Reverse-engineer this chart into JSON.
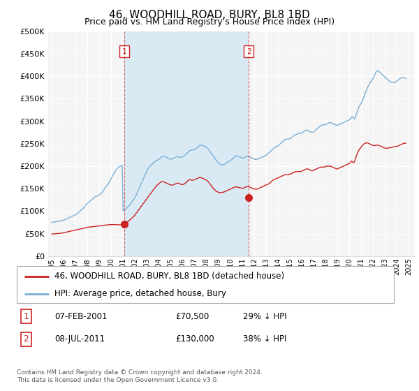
{
  "title": "46, WOODHILL ROAD, BURY, BL8 1BD",
  "subtitle": "Price paid vs. HM Land Registry's House Price Index (HPI)",
  "legend_line1": "46, WOODHILL ROAD, BURY, BL8 1BD (detached house)",
  "legend_line2": "HPI: Average price, detached house, Bury",
  "table_row1": [
    "1",
    "07-FEB-2001",
    "£70,500",
    "29% ↓ HPI"
  ],
  "table_row2": [
    "2",
    "08-JUL-2011",
    "£130,000",
    "38% ↓ HPI"
  ],
  "footnote": "Contains HM Land Registry data © Crown copyright and database right 2024.\nThis data is licensed under the Open Government Licence v3.0.",
  "hpi_color": "#7bafd4",
  "price_color": "#cc2222",
  "vline_color": "#cc2222",
  "shade_color": "#daeaf5",
  "marker1_year": 2001.1,
  "marker1_value": 70500,
  "marker2_year": 2011.55,
  "marker2_value": 130000,
  "ylim": [
    0,
    500000
  ],
  "yticks": [
    0,
    50000,
    100000,
    150000,
    200000,
    250000,
    300000,
    350000,
    400000,
    450000,
    500000
  ],
  "xmin": 1994.7,
  "xmax": 2025.5,
  "background_color": "#f5f5f5",
  "hpi_x": [
    1995.0,
    1995.08,
    1995.17,
    1995.25,
    1995.33,
    1995.42,
    1995.5,
    1995.58,
    1995.67,
    1995.75,
    1995.83,
    1995.92,
    1996.0,
    1996.08,
    1996.17,
    1996.25,
    1996.33,
    1996.42,
    1996.5,
    1996.58,
    1996.67,
    1996.75,
    1996.83,
    1996.92,
    1997.0,
    1997.08,
    1997.17,
    1997.25,
    1997.33,
    1997.42,
    1997.5,
    1997.58,
    1997.67,
    1997.75,
    1997.83,
    1997.92,
    1998.0,
    1998.08,
    1998.17,
    1998.25,
    1998.33,
    1998.42,
    1998.5,
    1998.58,
    1998.67,
    1998.75,
    1998.83,
    1998.92,
    1999.0,
    1999.08,
    1999.17,
    1999.25,
    1999.33,
    1999.42,
    1999.5,
    1999.58,
    1999.67,
    1999.75,
    1999.83,
    1999.92,
    2000.0,
    2000.08,
    2000.17,
    2000.25,
    2000.33,
    2000.42,
    2000.5,
    2000.58,
    2000.67,
    2000.75,
    2000.83,
    2000.92,
    2001.0,
    2001.08,
    2001.17,
    2001.25,
    2001.33,
    2001.42,
    2001.5,
    2001.58,
    2001.67,
    2001.75,
    2001.83,
    2001.92,
    2002.0,
    2002.08,
    2002.17,
    2002.25,
    2002.33,
    2002.42,
    2002.5,
    2002.58,
    2002.67,
    2002.75,
    2002.83,
    2002.92,
    2003.0,
    2003.08,
    2003.17,
    2003.25,
    2003.33,
    2003.42,
    2003.5,
    2003.58,
    2003.67,
    2003.75,
    2003.83,
    2003.92,
    2004.0,
    2004.08,
    2004.17,
    2004.25,
    2004.33,
    2004.42,
    2004.5,
    2004.58,
    2004.67,
    2004.75,
    2004.83,
    2004.92,
    2005.0,
    2005.08,
    2005.17,
    2005.25,
    2005.33,
    2005.42,
    2005.5,
    2005.58,
    2005.67,
    2005.75,
    2005.83,
    2005.92,
    2006.0,
    2006.08,
    2006.17,
    2006.25,
    2006.33,
    2006.42,
    2006.5,
    2006.58,
    2006.67,
    2006.75,
    2006.83,
    2006.92,
    2007.0,
    2007.08,
    2007.17,
    2007.25,
    2007.33,
    2007.42,
    2007.5,
    2007.58,
    2007.67,
    2007.75,
    2007.83,
    2007.92,
    2008.0,
    2008.08,
    2008.17,
    2008.25,
    2008.33,
    2008.42,
    2008.5,
    2008.58,
    2008.67,
    2008.75,
    2008.83,
    2008.92,
    2009.0,
    2009.08,
    2009.17,
    2009.25,
    2009.33,
    2009.42,
    2009.5,
    2009.58,
    2009.67,
    2009.75,
    2009.83,
    2009.92,
    2010.0,
    2010.08,
    2010.17,
    2010.25,
    2010.33,
    2010.42,
    2010.5,
    2010.58,
    2010.67,
    2010.75,
    2010.83,
    2010.92,
    2011.0,
    2011.08,
    2011.17,
    2011.25,
    2011.33,
    2011.42,
    2011.5,
    2011.58,
    2011.67,
    2011.75,
    2011.83,
    2011.92,
    2012.0,
    2012.08,
    2012.17,
    2012.25,
    2012.33,
    2012.42,
    2012.5,
    2012.58,
    2012.67,
    2012.75,
    2012.83,
    2012.92,
    2013.0,
    2013.08,
    2013.17,
    2013.25,
    2013.33,
    2013.42,
    2013.5,
    2013.58,
    2013.67,
    2013.75,
    2013.83,
    2013.92,
    2014.0,
    2014.08,
    2014.17,
    2014.25,
    2014.33,
    2014.42,
    2014.5,
    2014.58,
    2014.67,
    2014.75,
    2014.83,
    2014.92,
    2015.0,
    2015.08,
    2015.17,
    2015.25,
    2015.33,
    2015.42,
    2015.5,
    2015.58,
    2015.67,
    2015.75,
    2015.83,
    2015.92,
    2016.0,
    2016.08,
    2016.17,
    2016.25,
    2016.33,
    2016.42,
    2016.5,
    2016.58,
    2016.67,
    2016.75,
    2016.83,
    2016.92,
    2017.0,
    2017.08,
    2017.17,
    2017.25,
    2017.33,
    2017.42,
    2017.5,
    2017.58,
    2017.67,
    2017.75,
    2017.83,
    2017.92,
    2018.0,
    2018.08,
    2018.17,
    2018.25,
    2018.33,
    2018.42,
    2018.5,
    2018.58,
    2018.67,
    2018.75,
    2018.83,
    2018.92,
    2019.0,
    2019.08,
    2019.17,
    2019.25,
    2019.33,
    2019.42,
    2019.5,
    2019.58,
    2019.67,
    2019.75,
    2019.83,
    2019.92,
    2020.0,
    2020.08,
    2020.17,
    2020.25,
    2020.33,
    2020.42,
    2020.5,
    2020.58,
    2020.67,
    2020.75,
    2020.83,
    2020.92,
    2021.0,
    2021.08,
    2021.17,
    2021.25,
    2021.33,
    2021.42,
    2021.5,
    2021.58,
    2021.67,
    2021.75,
    2021.83,
    2021.92,
    2022.0,
    2022.08,
    2022.17,
    2022.25,
    2022.33,
    2022.42,
    2022.5,
    2022.58,
    2022.67,
    2022.75,
    2022.83,
    2022.92,
    2023.0,
    2023.08,
    2023.17,
    2023.25,
    2023.33,
    2023.42,
    2023.5,
    2023.58,
    2023.67,
    2023.75,
    2023.83,
    2023.92,
    2024.0,
    2024.08,
    2024.17,
    2024.25,
    2024.33,
    2024.42,
    2024.5,
    2024.58,
    2024.67,
    2024.75
  ],
  "hpi_y": [
    75000,
    75500,
    76000,
    75800,
    76200,
    76500,
    77000,
    77500,
    78000,
    78500,
    79000,
    79500,
    80000,
    81000,
    82000,
    83000,
    84000,
    85000,
    86000,
    87000,
    88000,
    89000,
    90000,
    91000,
    92000,
    93500,
    95000,
    97000,
    99000,
    101000,
    103000,
    105000,
    107000,
    110000,
    113000,
    115000,
    117000,
    119000,
    121000,
    123000,
    125000,
    127000,
    129000,
    131000,
    132000,
    133000,
    134000,
    135000,
    136000,
    138000,
    140000,
    143000,
    146000,
    149000,
    152000,
    155000,
    158000,
    161000,
    165000,
    169000,
    173000,
    177000,
    181000,
    185000,
    189000,
    192000,
    195000,
    197000,
    199000,
    200000,
    201000,
    202000,
    100000,
    102000,
    104000,
    106000,
    108000,
    110000,
    112000,
    115000,
    118000,
    121000,
    124000,
    127000,
    130000,
    135000,
    140000,
    145000,
    150000,
    155000,
    160000,
    165000,
    170000,
    175000,
    180000,
    185000,
    190000,
    194000,
    197000,
    200000,
    202000,
    204000,
    206000,
    208000,
    210000,
    212000,
    213000,
    214000,
    215000,
    217000,
    219000,
    221000,
    222000,
    222000,
    221000,
    220000,
    219000,
    218000,
    217000,
    216000,
    215000,
    216000,
    217000,
    218000,
    219000,
    220000,
    221000,
    221000,
    220000,
    220000,
    220000,
    220000,
    221000,
    222000,
    224000,
    226000,
    228000,
    230000,
    232000,
    234000,
    235000,
    236000,
    236000,
    236000,
    237000,
    238000,
    240000,
    242000,
    244000,
    246000,
    247000,
    247000,
    246000,
    245000,
    244000,
    243000,
    242000,
    240000,
    237000,
    234000,
    231000,
    228000,
    225000,
    222000,
    219000,
    216000,
    213000,
    210000,
    207000,
    205000,
    204000,
    203000,
    203000,
    203000,
    204000,
    205000,
    207000,
    209000,
    210000,
    211000,
    212000,
    214000,
    216000,
    218000,
    220000,
    222000,
    223000,
    223000,
    222000,
    221000,
    220000,
    219000,
    218000,
    218000,
    219000,
    220000,
    221000,
    222000,
    222000,
    221000,
    220000,
    219000,
    218000,
    217000,
    216000,
    215000,
    215000,
    215000,
    216000,
    217000,
    218000,
    219000,
    220000,
    221000,
    222000,
    223000,
    224000,
    226000,
    228000,
    230000,
    232000,
    234000,
    236000,
    238000,
    240000,
    242000,
    243000,
    244000,
    245000,
    247000,
    249000,
    251000,
    253000,
    255000,
    257000,
    259000,
    260000,
    260000,
    260000,
    260000,
    261000,
    262000,
    264000,
    266000,
    268000,
    269000,
    270000,
    271000,
    272000,
    273000,
    273000,
    273000,
    274000,
    275000,
    277000,
    279000,
    280000,
    280000,
    279000,
    278000,
    277000,
    276000,
    275000,
    275000,
    276000,
    278000,
    280000,
    282000,
    284000,
    286000,
    288000,
    290000,
    291000,
    292000,
    292000,
    292000,
    293000,
    294000,
    295000,
    296000,
    297000,
    297000,
    296000,
    295000,
    294000,
    293000,
    292000,
    291000,
    291000,
    292000,
    293000,
    294000,
    295000,
    296000,
    297000,
    298000,
    299000,
    300000,
    301000,
    302000,
    303000,
    305000,
    308000,
    310000,
    310000,
    305000,
    308000,
    315000,
    322000,
    328000,
    333000,
    337000,
    340000,
    345000,
    350000,
    356000,
    362000,
    368000,
    373000,
    378000,
    382000,
    386000,
    389000,
    392000,
    395000,
    400000,
    405000,
    410000,
    412000,
    412000,
    410000,
    408000,
    406000,
    404000,
    402000,
    400000,
    398000,
    396000,
    394000,
    392000,
    390000,
    388000,
    387000,
    386000,
    386000,
    386000,
    387000,
    388000,
    389000,
    391000,
    393000,
    395000,
    396000,
    397000,
    397000,
    397000,
    396000,
    395000
  ],
  "price_x": [
    1995.0,
    1995.08,
    1995.17,
    1995.25,
    1995.33,
    1995.42,
    1995.5,
    1995.58,
    1995.67,
    1995.75,
    1995.83,
    1995.92,
    1996.0,
    1996.08,
    1996.17,
    1996.25,
    1996.33,
    1996.42,
    1996.5,
    1996.58,
    1996.67,
    1996.75,
    1996.83,
    1996.92,
    1997.0,
    1997.08,
    1997.17,
    1997.25,
    1997.33,
    1997.42,
    1997.5,
    1997.58,
    1997.67,
    1997.75,
    1997.83,
    1997.92,
    1998.0,
    1998.08,
    1998.17,
    1998.25,
    1998.33,
    1998.42,
    1998.5,
    1998.58,
    1998.67,
    1998.75,
    1998.83,
    1998.92,
    1999.0,
    1999.08,
    1999.17,
    1999.25,
    1999.33,
    1999.42,
    1999.5,
    1999.58,
    1999.67,
    1999.75,
    1999.83,
    1999.92,
    2000.0,
    2000.08,
    2000.17,
    2000.25,
    2000.33,
    2000.42,
    2000.5,
    2000.58,
    2000.67,
    2000.75,
    2000.83,
    2000.92,
    2001.0,
    2001.08,
    2001.17,
    2001.25,
    2001.33,
    2001.42,
    2001.5,
    2001.58,
    2001.67,
    2001.75,
    2001.83,
    2001.92,
    2002.0,
    2002.08,
    2002.17,
    2002.25,
    2002.33,
    2002.42,
    2002.5,
    2002.58,
    2002.67,
    2002.75,
    2002.83,
    2002.92,
    2003.0,
    2003.08,
    2003.17,
    2003.25,
    2003.33,
    2003.42,
    2003.5,
    2003.58,
    2003.67,
    2003.75,
    2003.83,
    2003.92,
    2004.0,
    2004.08,
    2004.17,
    2004.25,
    2004.33,
    2004.42,
    2004.5,
    2004.58,
    2004.67,
    2004.75,
    2004.83,
    2004.92,
    2005.0,
    2005.08,
    2005.17,
    2005.25,
    2005.33,
    2005.42,
    2005.5,
    2005.58,
    2005.67,
    2005.75,
    2005.83,
    2005.92,
    2006.0,
    2006.08,
    2006.17,
    2006.25,
    2006.33,
    2006.42,
    2006.5,
    2006.58,
    2006.67,
    2006.75,
    2006.83,
    2006.92,
    2007.0,
    2007.08,
    2007.17,
    2007.25,
    2007.33,
    2007.42,
    2007.5,
    2007.58,
    2007.67,
    2007.75,
    2007.83,
    2007.92,
    2008.0,
    2008.08,
    2008.17,
    2008.25,
    2008.33,
    2008.42,
    2008.5,
    2008.58,
    2008.67,
    2008.75,
    2008.83,
    2008.92,
    2009.0,
    2009.08,
    2009.17,
    2009.25,
    2009.33,
    2009.42,
    2009.5,
    2009.58,
    2009.67,
    2009.75,
    2009.83,
    2009.92,
    2010.0,
    2010.08,
    2010.17,
    2010.25,
    2010.33,
    2010.42,
    2010.5,
    2010.58,
    2010.67,
    2010.75,
    2010.83,
    2010.92,
    2011.0,
    2011.08,
    2011.17,
    2011.25,
    2011.33,
    2011.42,
    2011.5,
    2011.58,
    2011.67,
    2011.75,
    2011.83,
    2011.92,
    2012.0,
    2012.08,
    2012.17,
    2012.25,
    2012.33,
    2012.42,
    2012.5,
    2012.58,
    2012.67,
    2012.75,
    2012.83,
    2012.92,
    2013.0,
    2013.08,
    2013.17,
    2013.25,
    2013.33,
    2013.42,
    2013.5,
    2013.58,
    2013.67,
    2013.75,
    2013.83,
    2013.92,
    2014.0,
    2014.08,
    2014.17,
    2014.25,
    2014.33,
    2014.42,
    2014.5,
    2014.58,
    2014.67,
    2014.75,
    2014.83,
    2014.92,
    2015.0,
    2015.08,
    2015.17,
    2015.25,
    2015.33,
    2015.42,
    2015.5,
    2015.58,
    2015.67,
    2015.75,
    2015.83,
    2015.92,
    2016.0,
    2016.08,
    2016.17,
    2016.25,
    2016.33,
    2016.42,
    2016.5,
    2016.58,
    2016.67,
    2016.75,
    2016.83,
    2016.92,
    2017.0,
    2017.08,
    2017.17,
    2017.25,
    2017.33,
    2017.42,
    2017.5,
    2017.58,
    2017.67,
    2017.75,
    2017.83,
    2017.92,
    2018.0,
    2018.08,
    2018.17,
    2018.25,
    2018.33,
    2018.42,
    2018.5,
    2018.58,
    2018.67,
    2018.75,
    2018.83,
    2018.92,
    2019.0,
    2019.08,
    2019.17,
    2019.25,
    2019.33,
    2019.42,
    2019.5,
    2019.58,
    2019.67,
    2019.75,
    2019.83,
    2019.92,
    2020.0,
    2020.08,
    2020.17,
    2020.25,
    2020.33,
    2020.42,
    2020.5,
    2020.58,
    2020.67,
    2020.75,
    2020.83,
    2020.92,
    2021.0,
    2021.08,
    2021.17,
    2021.25,
    2021.33,
    2021.42,
    2021.5,
    2021.58,
    2021.67,
    2021.75,
    2021.83,
    2021.92,
    2022.0,
    2022.08,
    2022.17,
    2022.25,
    2022.33,
    2022.42,
    2022.5,
    2022.58,
    2022.67,
    2022.75,
    2022.83,
    2022.92,
    2023.0,
    2023.08,
    2023.17,
    2023.25,
    2023.33,
    2023.42,
    2023.5,
    2023.58,
    2023.67,
    2023.75,
    2023.83,
    2023.92,
    2024.0,
    2024.08,
    2024.17,
    2024.25,
    2024.33,
    2024.42,
    2024.5,
    2024.58,
    2024.67,
    2024.75
  ],
  "price_y": [
    49000,
    49200,
    49400,
    49600,
    49800,
    50000,
    50200,
    50400,
    50600,
    50800,
    51000,
    51500,
    52000,
    52500,
    53000,
    53500,
    54000,
    54500,
    55000,
    55500,
    56000,
    56500,
    57000,
    57500,
    58000,
    58500,
    59000,
    59500,
    60000,
    60500,
    61000,
    61500,
    62000,
    62500,
    63000,
    63500,
    64000,
    64300,
    64600,
    64900,
    65200,
    65500,
    65800,
    66100,
    66400,
    66600,
    66800,
    67000,
    67200,
    67500,
    67800,
    68100,
    68400,
    68700,
    69000,
    69300,
    69500,
    69700,
    69900,
    70000,
    70100,
    70200,
    70200,
    70100,
    70000,
    69900,
    69800,
    69700,
    69600,
    69500,
    69400,
    69500,
    70500,
    71000,
    72000,
    73500,
    75000,
    77000,
    79000,
    81000,
    83000,
    85000,
    87000,
    89000,
    92000,
    95000,
    98000,
    101000,
    104000,
    107000,
    110000,
    113000,
    116000,
    119000,
    122000,
    125000,
    128000,
    131000,
    134000,
    137000,
    140000,
    143000,
    146000,
    149000,
    152000,
    155000,
    157000,
    159000,
    161000,
    163000,
    165000,
    166000,
    166000,
    165000,
    164000,
    163000,
    162000,
    161000,
    160000,
    159000,
    158000,
    158000,
    158000,
    159000,
    160000,
    161000,
    162000,
    162000,
    162000,
    161000,
    160000,
    159000,
    159000,
    160000,
    161000,
    163000,
    165000,
    167000,
    169000,
    170000,
    170000,
    169000,
    169000,
    169000,
    170000,
    171000,
    172000,
    173000,
    174000,
    175000,
    175000,
    174000,
    173000,
    172000,
    171000,
    170000,
    169000,
    167000,
    165000,
    162000,
    159000,
    156000,
    153000,
    150000,
    148000,
    146000,
    144000,
    143000,
    142000,
    141000,
    141000,
    141000,
    142000,
    142000,
    143000,
    144000,
    145000,
    146000,
    147000,
    148000,
    149000,
    150000,
    151000,
    152000,
    153000,
    154000,
    154000,
    153000,
    153000,
    152000,
    152000,
    151000,
    151000,
    151000,
    152000,
    153000,
    154000,
    155000,
    155000,
    154000,
    153000,
    152000,
    151000,
    150000,
    149000,
    149000,
    149000,
    149000,
    150000,
    151000,
    152000,
    153000,
    154000,
    155000,
    156000,
    157000,
    158000,
    159000,
    160000,
    161000,
    163000,
    165000,
    167000,
    169000,
    170000,
    171000,
    172000,
    173000,
    174000,
    175000,
    176000,
    177000,
    178000,
    179000,
    180000,
    181000,
    181000,
    181000,
    181000,
    181000,
    182000,
    183000,
    184000,
    185000,
    186000,
    187000,
    188000,
    188000,
    188000,
    188000,
    188000,
    188000,
    189000,
    190000,
    191000,
    192000,
    193000,
    194000,
    194000,
    193000,
    192000,
    191000,
    190000,
    190000,
    191000,
    192000,
    193000,
    194000,
    195000,
    196000,
    197000,
    198000,
    198000,
    198000,
    198000,
    198000,
    199000,
    200000,
    200000,
    200000,
    200000,
    200000,
    199000,
    198000,
    197000,
    196000,
    195000,
    194000,
    194000,
    195000,
    196000,
    197000,
    198000,
    199000,
    200000,
    201000,
    202000,
    203000,
    204000,
    205000,
    206000,
    208000,
    211000,
    210000,
    208000,
    209000,
    215000,
    222000,
    228000,
    233000,
    237000,
    240000,
    243000,
    246000,
    248000,
    250000,
    251000,
    252000,
    252000,
    251000,
    250000,
    249000,
    248000,
    247000,
    246000,
    246000,
    246000,
    246000,
    247000,
    247000,
    246000,
    245000,
    244000,
    243000,
    242000,
    241000,
    240000,
    240000,
    240000,
    240000,
    241000,
    241000,
    242000,
    242000,
    243000,
    243000,
    243000,
    244000,
    244000,
    245000,
    246000,
    247000,
    248000,
    249000,
    250000,
    251000,
    251000,
    251000
  ]
}
